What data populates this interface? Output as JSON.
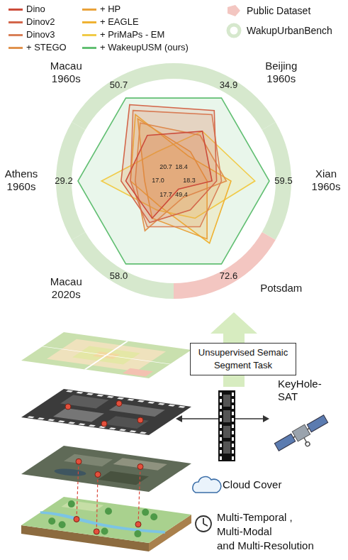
{
  "chart_data": {
    "type": "radar",
    "categories": [
      "Macau 1960s",
      "Beijing 1960s",
      "Xian 1960s",
      "Potsdam",
      "Macau 2020s",
      "Athens 1960s"
    ],
    "axes": [
      {
        "ylim": [
          20.7,
          50.7
        ],
        "yticks": [
          20.7,
          50.7
        ]
      },
      {
        "ylim": [
          18.4,
          34.9
        ],
        "yticks": [
          18.4,
          34.9
        ]
      },
      {
        "ylim": [
          18.3,
          59.5
        ],
        "yticks": [
          18.3,
          59.5
        ]
      },
      {
        "ylim": [
          49.4,
          72.6
        ],
        "yticks": [
          49.4,
          72.6
        ]
      },
      {
        "ylim": [
          17.7,
          58.0
        ],
        "yticks": [
          17.7,
          {
            "value": 58,
            "label": "58.0"
          }
        ]
      },
      {
        "ylim": [
          17.0,
          29.2
        ],
        "yticks": [
          {
            "value": 17,
            "label": "17.0"
          },
          29.2
        ]
      }
    ],
    "series": [
      {
        "name": "Dino",
        "color": "#cc4b3a",
        "values": [
          37.2,
          28.3,
          34.8,
          51.7,
          35.8,
          23.1
        ]
      },
      {
        "name": "Dinov2",
        "color": "#d3664a",
        "values": [
          48.3,
          32.4,
          36.8,
          57.5,
          37.9,
          23.7
        ]
      },
      {
        "name": "Dinov3",
        "color": "#d98058",
        "values": [
          46.2,
          31.6,
          38.9,
          62.2,
          39.9,
          22.5
        ]
      },
      {
        "name": "+ STEGO",
        "color": "#e0934e",
        "values": [
          41.7,
          27.5,
          41.0,
          54.0,
          41.9,
          21.9
        ]
      },
      {
        "name": "+ HP",
        "color": "#e9a23a",
        "values": [
          43.2,
          24.2,
          32.7,
          65.6,
          35.8,
          20.7
        ]
      },
      {
        "name": "+ EAGLE",
        "color": "#efb232",
        "values": [
          44.7,
          23.4,
          43.0,
          66.8,
          29.8,
          22.5
        ]
      },
      {
        "name": "+ PriMaPs - EM",
        "color": "#f1cb48",
        "values": [
          31.2,
          28.3,
          53.3,
          59.8,
          31.8,
          26.2
        ]
      },
      {
        "name": "+ WakeupUSM (ours)",
        "color": "#62bf73",
        "values": [
          50.7,
          34.9,
          59.5,
          72.6,
          58.0,
          29.2
        ]
      }
    ],
    "ring_groups": [
      {
        "name": "Public Dataset",
        "color": "#f3c6c1",
        "categories": [
          "Potsdam"
        ]
      },
      {
        "name": "WakupUrbanBench",
        "color": "#d6e8cd",
        "categories": [
          "Macau 1960s",
          "Beijing 1960s",
          "Xian 1960s",
          "Macau 2020s",
          "Athens 1960s"
        ]
      }
    ],
    "grid": false,
    "legend": "top-left"
  },
  "diagram": {
    "task": "Unsupervised Semaic Segment Task",
    "sensor": "KeyHole-SAT",
    "conditions": [
      {
        "lines": [
          "Cloud Cover"
        ]
      },
      {
        "lines": [
          "Multi-Temporal ,",
          "Multi-Modal",
          "and Multi-Resolution"
        ]
      }
    ]
  }
}
